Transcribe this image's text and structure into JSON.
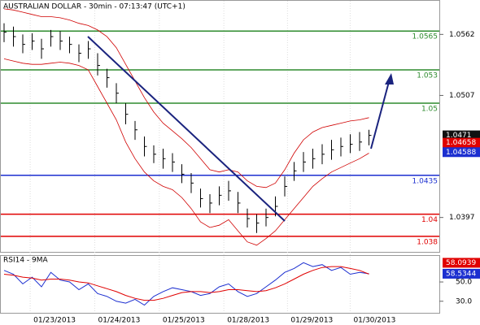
{
  "chart_data": [
    {
      "type": "ohlc",
      "title": "AUSTRALIAN DOLLAR - 30min - 07:13:47 (UTC+1)",
      "close": [
        1.0564,
        1.056,
        1.0553,
        1.0556,
        1.0549,
        1.056,
        1.0556,
        1.0553,
        1.0545,
        1.0549,
        1.0534,
        1.0523,
        1.0509,
        1.049,
        1.0476,
        1.0461,
        1.0454,
        1.045,
        1.0447,
        1.0436,
        1.0428,
        1.0414,
        1.041,
        1.0417,
        1.0421,
        1.041,
        1.0396,
        1.0392,
        1.0397,
        1.0407,
        1.0425,
        1.0439,
        1.0447,
        1.045,
        1.0454,
        1.0458,
        1.0461,
        1.0463,
        1.0465,
        1.0471
      ],
      "high": [
        1.0572,
        1.0569,
        1.0562,
        1.0563,
        1.0558,
        1.0566,
        1.0565,
        1.056,
        1.0553,
        1.0556,
        1.0545,
        1.0531,
        1.0518,
        1.05,
        1.0484,
        1.047,
        1.0462,
        1.0459,
        1.0455,
        1.0445,
        1.0437,
        1.0423,
        1.0418,
        1.0425,
        1.043,
        1.042,
        1.0405,
        1.04,
        1.0405,
        1.0416,
        1.0434,
        1.0447,
        1.0456,
        1.0459,
        1.0463,
        1.0467,
        1.0469,
        1.0472,
        1.0474,
        1.0476
      ],
      "low": [
        1.0555,
        1.0551,
        1.0545,
        1.0548,
        1.054,
        1.0551,
        1.0548,
        1.0545,
        1.0537,
        1.054,
        1.0525,
        1.0514,
        1.05,
        1.0481,
        1.0467,
        1.0452,
        1.0446,
        1.0441,
        1.0438,
        1.0428,
        1.0419,
        1.0406,
        1.0401,
        1.0408,
        1.0412,
        1.0401,
        1.0388,
        1.0383,
        1.0389,
        1.0398,
        1.0416,
        1.043,
        1.0438,
        1.0441,
        1.0445,
        1.0449,
        1.0452,
        1.0455,
        1.0457,
        1.0462
      ],
      "bar_color": "#000000",
      "band_upper": [
        1.0585,
        1.0584,
        1.0582,
        1.058,
        1.0578,
        1.0578,
        1.0577,
        1.0575,
        1.0572,
        1.057,
        1.0566,
        1.056,
        1.055,
        1.0535,
        1.052,
        1.0505,
        1.0492,
        1.0482,
        1.0475,
        1.0468,
        1.046,
        1.045,
        1.044,
        1.0438,
        1.044,
        1.0438,
        1.043,
        1.0425,
        1.0424,
        1.0428,
        1.044,
        1.0455,
        1.0467,
        1.0474,
        1.0478,
        1.048,
        1.0482,
        1.0484,
        1.0485,
        1.0487
      ],
      "band_lower": [
        1.054,
        1.0538,
        1.0536,
        1.0535,
        1.0535,
        1.0536,
        1.0537,
        1.0536,
        1.0534,
        1.053,
        1.0515,
        1.05,
        1.0485,
        1.0465,
        1.045,
        1.0438,
        1.043,
        1.0425,
        1.0422,
        1.0415,
        1.0405,
        1.0393,
        1.0388,
        1.039,
        1.0395,
        1.0385,
        1.0375,
        1.0372,
        1.0378,
        1.0385,
        1.0395,
        1.0405,
        1.0415,
        1.0425,
        1.0432,
        1.0438,
        1.0442,
        1.0446,
        1.045,
        1.0455
      ],
      "band_color": "#d00000",
      "levels": [
        {
          "value": 1.0565,
          "color": "#2e8b2e"
        },
        {
          "value": 1.053,
          "color": "#2e8b2e"
        },
        {
          "value": 1.05,
          "color": "#2e8b2e"
        },
        {
          "value": 1.0435,
          "color": "#1c2fd0"
        },
        {
          "value": 1.04,
          "color": "#e00000"
        },
        {
          "value": 1.038,
          "color": "#e00000"
        }
      ],
      "markers": [
        {
          "value": 1.04658,
          "color": "#e00000"
        },
        {
          "value": 1.04588,
          "color": "#1c2fd0"
        }
      ],
      "ylim": [
        1.0366,
        1.0593
      ],
      "yticks": [
        1.0562,
        1.0507,
        1.0397
      ],
      "xticks": [
        {
          "value": 5.4,
          "label": "01/23/2013"
        },
        {
          "value": 12.3,
          "label": "01/24/2013"
        },
        {
          "value": 19.2,
          "label": "01/25/2013"
        },
        {
          "value": 26.1,
          "label": "01/28/2013"
        },
        {
          "value": 32.9,
          "label": "01/29/2013"
        },
        {
          "value": 39.6,
          "label": "01/30/2013"
        }
      ]
    },
    {
      "type": "line",
      "title": "RSI14 - 9MA",
      "series": [
        {
          "color": "#1c2fd0",
          "values": [
            62,
            58,
            48,
            55,
            45,
            60,
            52,
            50,
            42,
            48,
            38,
            35,
            30,
            28,
            32,
            26,
            35,
            40,
            44,
            42,
            40,
            36,
            38,
            45,
            48,
            40,
            35,
            38,
            45,
            52,
            60,
            64,
            70,
            66,
            68,
            62,
            65,
            58,
            60,
            58.5344
          ]
        },
        {
          "color": "#e00000",
          "values": [
            58,
            57,
            55,
            54,
            52,
            53,
            53,
            52,
            50,
            49,
            46,
            43,
            40,
            36,
            33,
            31,
            31,
            33,
            36,
            39,
            40,
            40,
            39,
            40,
            42,
            42,
            41,
            40,
            41,
            44,
            48,
            53,
            58,
            62,
            65,
            66,
            66,
            64,
            62,
            58.0939
          ]
        }
      ],
      "ylim": [
        18,
        77
      ],
      "yticks": [
        {
          "value": 50,
          "label": "50.0"
        },
        {
          "value": 30,
          "label": "30.0"
        }
      ]
    }
  ]
}
